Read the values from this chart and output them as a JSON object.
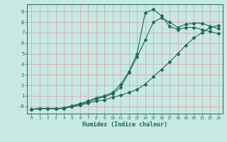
{
  "xlabel": "Humidex (Indice chaleur)",
  "bg_color": "#c8e8e4",
  "grid_color": "#d4a0a0",
  "line_color": "#1a6b5a",
  "xlim": [
    -0.5,
    23.5
  ],
  "ylim": [
    -0.7,
    9.7
  ],
  "xticks": [
    0,
    1,
    2,
    3,
    4,
    5,
    6,
    7,
    8,
    9,
    10,
    11,
    12,
    13,
    14,
    15,
    16,
    17,
    18,
    19,
    20,
    21,
    22,
    23
  ],
  "yticks": [
    0,
    1,
    2,
    3,
    4,
    5,
    6,
    7,
    8,
    9
  ],
  "line1_y": [
    -0.3,
    -0.25,
    -0.2,
    -0.25,
    -0.2,
    -0.05,
    0.1,
    0.3,
    0.5,
    0.6,
    0.85,
    1.05,
    1.3,
    1.6,
    2.1,
    2.8,
    3.5,
    4.2,
    5.0,
    5.8,
    6.5,
    7.0,
    7.5,
    7.7
  ],
  "line2_y": [
    -0.3,
    -0.2,
    -0.2,
    -0.25,
    -0.15,
    0.0,
    0.2,
    0.4,
    0.7,
    0.9,
    1.2,
    1.8,
    3.2,
    4.7,
    6.3,
    8.0,
    8.4,
    8.0,
    7.5,
    7.8,
    7.9,
    7.9,
    7.6,
    7.4
  ],
  "line3_y": [
    -0.3,
    -0.2,
    -0.2,
    -0.25,
    -0.15,
    0.05,
    0.25,
    0.5,
    0.8,
    1.0,
    1.3,
    2.1,
    3.3,
    5.0,
    8.9,
    9.2,
    8.6,
    7.6,
    7.3,
    7.5,
    7.5,
    7.3,
    7.1,
    6.9
  ]
}
